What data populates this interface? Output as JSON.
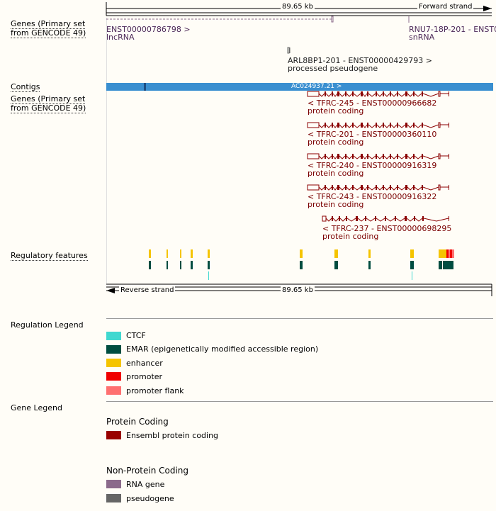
{
  "scale": {
    "length_label": "89.65 kb",
    "forward_label": "Forward strand",
    "reverse_label": "Reverse strand"
  },
  "tracks": {
    "genes_primary_top": "Genes (Primary set from GENCODE 49)",
    "contigs": "Contigs",
    "genes_primary_bottom": "Genes (Primary set from GENCODE 49)",
    "regulatory": "Regulatory features"
  },
  "top_genes": [
    {
      "id": "ENST00000786798 >",
      "biotype": "lncRNA"
    },
    {
      "id": "RNU7-18P-201 - ENST00",
      "biotype": "snRNA"
    },
    {
      "id": "ARL8BP1-201 - ENST00000429793 >",
      "biotype": "processed pseudogene"
    }
  ],
  "contig": {
    "label": "AC024937.21 >"
  },
  "transcripts": [
    {
      "id": "< TFRC-245 - ENST00000966682",
      "biotype": "protein coding"
    },
    {
      "id": "< TFRC-201 - ENST00000360110",
      "biotype": "protein coding"
    },
    {
      "id": "< TFRC-240 - ENST00000916319",
      "biotype": "protein coding"
    },
    {
      "id": "< TFRC-243 - ENST00000916322",
      "biotype": "protein coding"
    },
    {
      "id": "< TFRC-237 - ENST00000698295",
      "biotype": "protein coding"
    }
  ],
  "regulation_legend": {
    "title": "Regulation Legend",
    "items": [
      {
        "label": "CTCF",
        "color": "#40d8d0"
      },
      {
        "label": "EMAR (epigenetically modified accessible region)",
        "color": "#004d40"
      },
      {
        "label": "enhancer",
        "color": "#f5c400"
      },
      {
        "label": "promoter",
        "color": "#f00000"
      },
      {
        "label": "promoter flank",
        "color": "#ff7070"
      }
    ]
  },
  "gene_legend": {
    "title": "Gene Legend",
    "protein_heading": "Protein Coding",
    "protein_items": [
      {
        "label": "Ensembl protein coding",
        "color": "#990000"
      }
    ],
    "nonprotein_heading": "Non-Protein Coding",
    "nonprotein_items": [
      {
        "label": "RNA gene",
        "color": "#8b6a8b"
      },
      {
        "label": "pseudogene",
        "color": "#666666"
      }
    ]
  }
}
